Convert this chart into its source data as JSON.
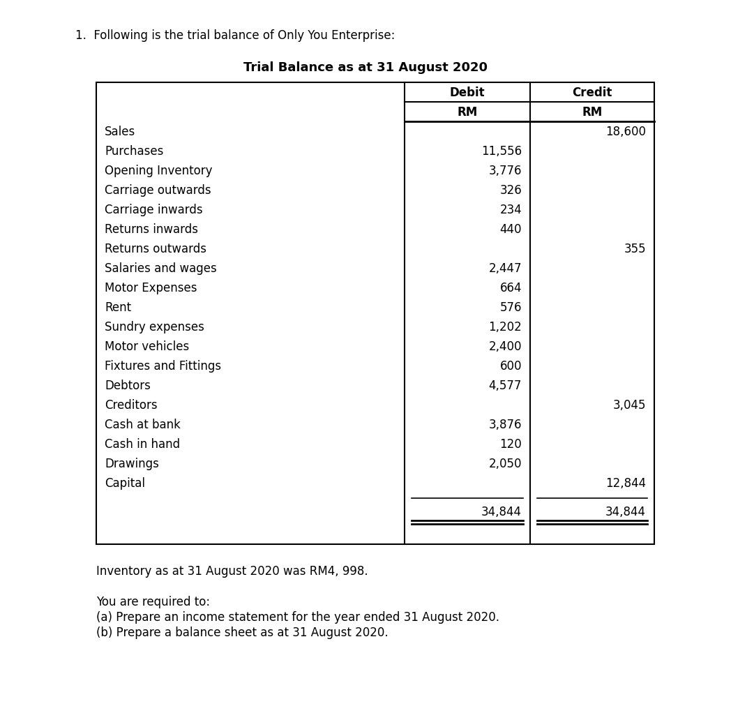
{
  "question_text": "1.  Following is the trial balance of Only You Enterprise:",
  "table_title": "Trial Balance as at 31 August 2020",
  "rows": [
    [
      "Sales",
      "",
      "18,600"
    ],
    [
      "Purchases",
      "11,556",
      ""
    ],
    [
      "Opening Inventory",
      "3,776",
      ""
    ],
    [
      "Carriage outwards",
      "326",
      ""
    ],
    [
      "Carriage inwards",
      "234",
      ""
    ],
    [
      "Returns inwards",
      "440",
      ""
    ],
    [
      "Returns outwards",
      "",
      "355"
    ],
    [
      "Salaries and wages",
      "2,447",
      ""
    ],
    [
      "Motor Expenses",
      "664",
      ""
    ],
    [
      "Rent",
      "576",
      ""
    ],
    [
      "Sundry expenses",
      "1,202",
      ""
    ],
    [
      "Motor vehicles",
      "2,400",
      ""
    ],
    [
      "Fixtures and Fittings",
      "600",
      ""
    ],
    [
      "Debtors",
      "4,577",
      ""
    ],
    [
      "Creditors",
      "",
      "3,045"
    ],
    [
      "Cash at bank",
      "3,876",
      ""
    ],
    [
      "Cash in hand",
      "120",
      ""
    ],
    [
      "Drawings",
      "2,050",
      ""
    ],
    [
      "Capital",
      "",
      "12,844"
    ]
  ],
  "total_debit": "34,844",
  "total_credit": "34,844",
  "footer_lines": [
    "Inventory as at 31 August 2020 was RM4, 998.",
    "",
    "You are required to:",
    "(a) Prepare an income statement for the year ended 31 August 2020.",
    "(b) Prepare a balance sheet as at 31 August 2020."
  ],
  "bg_color": "#ffffff",
  "text_color": "#000000",
  "border_color": "#000000",
  "question_fontsize": 12,
  "title_fontsize": 13,
  "header_fontsize": 12,
  "data_fontsize": 12,
  "footer_fontsize": 12
}
